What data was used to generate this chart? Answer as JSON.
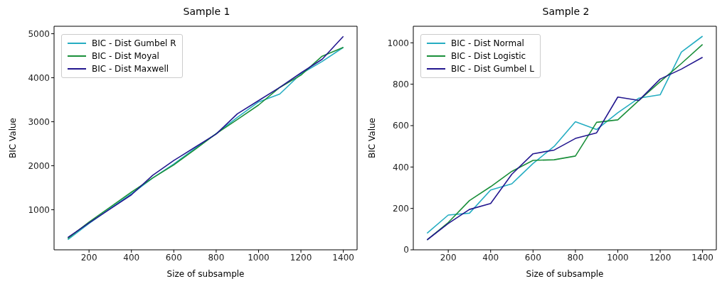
{
  "chart_data": [
    {
      "type": "line",
      "title": "Sample 1",
      "xlabel": "Size of subsample",
      "ylabel": "BIC Value",
      "x": [
        100,
        200,
        300,
        400,
        500,
        600,
        700,
        800,
        900,
        1000,
        1100,
        1200,
        1300,
        1400
      ],
      "series": [
        {
          "name": "BIC - Dist Gumbel R",
          "color": "#25adc2",
          "values": [
            320,
            690,
            1030,
            1360,
            1720,
            2040,
            2390,
            2730,
            3100,
            3450,
            3630,
            4090,
            4370,
            4690
          ]
        },
        {
          "name": "BIC - Dist Moyal",
          "color": "#1a8f3a",
          "values": [
            350,
            720,
            1060,
            1400,
            1720,
            2020,
            2370,
            2730,
            3050,
            3380,
            3780,
            4060,
            4490,
            4690
          ]
        },
        {
          "name": "BIC - Dist Maxwell",
          "color": "#23178f",
          "values": [
            370,
            700,
            1020,
            1340,
            1780,
            2120,
            2420,
            2720,
            3180,
            3480,
            3780,
            4110,
            4420,
            4940
          ]
        }
      ],
      "xlim": [
        35,
        1465
      ],
      "xticks": [
        200,
        400,
        600,
        800,
        1000,
        1200,
        1400
      ],
      "ylim": [
        90,
        5170
      ],
      "yticks": [
        1000,
        2000,
        3000,
        4000,
        5000
      ],
      "grid": false,
      "legend": "top left",
      "marker": "none",
      "line_style": "solid"
    },
    {
      "type": "line",
      "title": "Sample 2",
      "xlabel": "Size of subsample",
      "ylabel": "BIC Value",
      "x": [
        100,
        200,
        300,
        400,
        500,
        600,
        700,
        800,
        900,
        1000,
        1100,
        1200,
        1300,
        1400
      ],
      "series": [
        {
          "name": "BIC - Dist Normal",
          "color": "#25adc2",
          "values": [
            80,
            168,
            177,
            289,
            319,
            417,
            500,
            619,
            581,
            662,
            733,
            749,
            955,
            1032
          ]
        },
        {
          "name": "BIC - Dist Logistic",
          "color": "#1a8f3a",
          "values": [
            48,
            132,
            238,
            305,
            379,
            432,
            435,
            453,
            616,
            628,
            722,
            812,
            900,
            992
          ]
        },
        {
          "name": "BIC - Dist Gumbel L",
          "color": "#23178f",
          "values": [
            48,
            127,
            195,
            224,
            365,
            464,
            482,
            538,
            565,
            738,
            722,
            825,
            873,
            930
          ]
        }
      ],
      "xlim": [
        35,
        1465
      ],
      "xticks": [
        200,
        400,
        600,
        800,
        1000,
        1200,
        1400
      ],
      "ylim": [
        0,
        1080
      ],
      "yticks": [
        0,
        200,
        400,
        600,
        800,
        1000
      ],
      "grid": false,
      "legend": "top left",
      "marker": "none",
      "line_style": "solid"
    }
  ]
}
